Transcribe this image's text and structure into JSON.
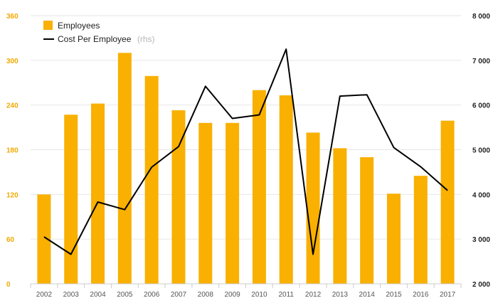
{
  "chart_data": {
    "type": "bar",
    "categories": [
      "2002",
      "2003",
      "2004",
      "2005",
      "2006",
      "2007",
      "2008",
      "2009",
      "2010",
      "2011",
      "2012",
      "2013",
      "2014",
      "2015",
      "2016",
      "2017"
    ],
    "series": [
      {
        "name": "Employees",
        "type": "bar",
        "axis": "left",
        "color": "#f9b000",
        "values": [
          120,
          227,
          242,
          310,
          279,
          233,
          216,
          216,
          260,
          253,
          203,
          182,
          170,
          121,
          145,
          219
        ]
      },
      {
        "name": "Cost Per Employee",
        "name_suffix": "(rhs)",
        "type": "line",
        "axis": "right",
        "color": "#000000",
        "values": [
          3050,
          2660,
          3830,
          3660,
          4610,
          5070,
          6420,
          5700,
          5780,
          7250,
          2660,
          6200,
          6230,
          5050,
          4620,
          4090
        ]
      }
    ],
    "y_left": {
      "ylim": [
        0,
        360
      ],
      "ticks": [
        0,
        60,
        120,
        180,
        240,
        300,
        360
      ],
      "tick_labels": [
        "0",
        "60",
        "120",
        "180",
        "240",
        "300",
        "360"
      ],
      "tick_color": "#f2a900"
    },
    "y_right": {
      "ylim": [
        2000,
        8000
      ],
      "ticks": [
        2000,
        3000,
        4000,
        5000,
        6000,
        7000,
        8000
      ],
      "tick_labels": [
        "2 000",
        "3 000",
        "4 000",
        "5 000",
        "6 000",
        "7 000",
        "8 000"
      ],
      "tick_color": "#222222"
    },
    "grid": true,
    "legend": "top-left"
  }
}
